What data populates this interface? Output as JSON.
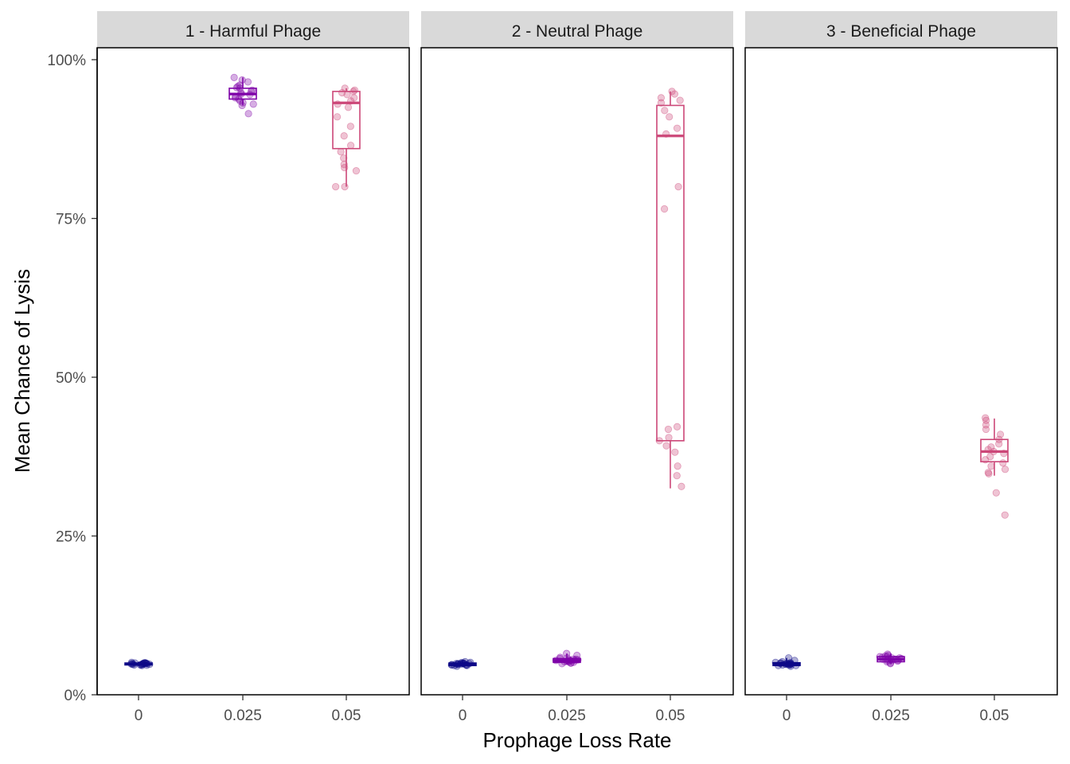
{
  "chart_data": {
    "type": "box",
    "xlabel": "Prophage Loss Rate",
    "ylabel": "Mean Chance of Lysis",
    "categories": [
      "0",
      "0.025",
      "0.05"
    ],
    "y_ticks": [
      "0%",
      "25%",
      "50%",
      "75%",
      "100%"
    ],
    "ylim": [
      0,
      100
    ],
    "grid": false,
    "legend": "none",
    "colors": {
      "0": "#0d0887",
      "0.025": "#7e03a8",
      "0.05": "#cc4778"
    },
    "facets": [
      {
        "label": "1 - Harmful Phage",
        "boxes": [
          {
            "category": "0",
            "q1": 4.7,
            "median": 4.85,
            "q3": 5.0,
            "lower": 4.5,
            "upper": 5.2,
            "points": [
              4.6,
              4.7,
              4.75,
              4.8,
              4.8,
              4.85,
              4.85,
              4.9,
              4.9,
              4.95,
              5.0,
              5.0,
              5.05,
              5.1,
              4.7,
              4.8,
              4.9,
              5.0,
              4.65,
              4.95
            ]
          },
          {
            "category": "0.025",
            "q1": 93.8,
            "median": 94.6,
            "q3": 95.5,
            "lower": 92.8,
            "upper": 97.2,
            "points": [
              97.2,
              96.8,
              96.5,
              96.0,
              95.8,
              95.5,
              95.2,
              95.0,
              94.8,
              94.6,
              94.5,
              94.2,
              94.0,
              93.8,
              93.5,
              93.2,
              93.0,
              92.8,
              91.5,
              95.6
            ]
          },
          {
            "category": "0.05",
            "q1": 86.0,
            "median": 93.2,
            "q3": 95.0,
            "lower": 80.0,
            "upper": 95.5,
            "points": [
              95.5,
              95.2,
              95.0,
              94.8,
              94.5,
              94.0,
              93.5,
              93.0,
              92.5,
              91.0,
              89.5,
              88.0,
              86.5,
              85.5,
              84.5,
              83.5,
              83.0,
              82.5,
              80.0,
              80.0
            ]
          }
        ]
      },
      {
        "label": "2 - Neutral Phage",
        "boxes": [
          {
            "category": "0",
            "q1": 4.6,
            "median": 4.8,
            "q3": 5.0,
            "lower": 4.4,
            "upper": 5.3,
            "points": [
              4.5,
              4.6,
              4.7,
              4.7,
              4.8,
              4.8,
              4.85,
              4.9,
              4.9,
              5.0,
              5.0,
              5.1,
              5.2,
              4.6,
              4.75,
              4.95,
              5.05,
              4.85,
              4.7,
              4.9
            ]
          },
          {
            "category": "0.025",
            "q1": 5.1,
            "median": 5.4,
            "q3": 5.7,
            "lower": 4.8,
            "upper": 6.5,
            "points": [
              6.5,
              6.2,
              5.9,
              5.8,
              5.6,
              5.5,
              5.4,
              5.4,
              5.3,
              5.2,
              5.1,
              5.0,
              4.9,
              5.6,
              5.5,
              5.3,
              5.7,
              5.2,
              5.0,
              5.4
            ]
          },
          {
            "category": "0.05",
            "q1": 40.0,
            "median": 88.0,
            "q3": 92.8,
            "lower": 32.5,
            "upper": 95.0,
            "points": [
              95.0,
              94.6,
              94.0,
              93.6,
              93.2,
              92.0,
              91.0,
              89.2,
              88.3,
              80.0,
              76.5,
              42.2,
              41.8,
              40.5,
              40.0,
              39.2,
              38.2,
              36.0,
              34.5,
              32.8
            ]
          }
        ]
      },
      {
        "label": "3 - Beneficial Phage",
        "boxes": [
          {
            "category": "0",
            "q1": 4.6,
            "median": 4.85,
            "q3": 5.05,
            "lower": 4.4,
            "upper": 5.8,
            "points": [
              5.8,
              5.4,
              5.2,
              5.1,
              5.0,
              4.95,
              4.9,
              4.85,
              4.8,
              4.8,
              4.7,
              4.6,
              4.5,
              4.6,
              4.75,
              4.95,
              5.05,
              4.85,
              4.7,
              4.9
            ]
          },
          {
            "category": "0.025",
            "q1": 5.2,
            "median": 5.6,
            "q3": 6.0,
            "lower": 4.8,
            "upper": 6.5,
            "points": [
              6.4,
              6.2,
              6.1,
              6.0,
              5.9,
              5.8,
              5.7,
              5.6,
              5.5,
              5.4,
              5.3,
              5.2,
              5.0,
              4.9,
              5.6,
              5.8,
              5.4,
              6.0,
              5.5,
              5.7
            ]
          },
          {
            "category": "0.05",
            "q1": 36.7,
            "median": 38.3,
            "q3": 40.2,
            "lower": 34.5,
            "upper": 43.5,
            "points": [
              43.6,
              43.2,
              42.5,
              41.8,
              41.0,
              40.2,
              39.5,
              39.0,
              38.6,
              38.3,
              38.0,
              37.5,
              37.0,
              36.5,
              36.0,
              35.5,
              35.0,
              34.8,
              31.8,
              28.3
            ]
          }
        ]
      }
    ]
  }
}
